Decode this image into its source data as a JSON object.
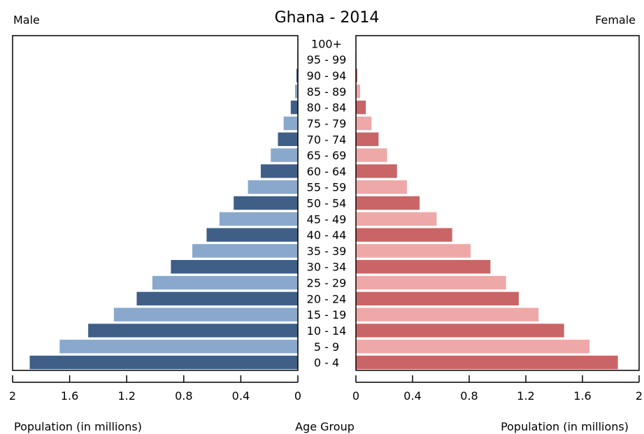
{
  "chart_data": {
    "type": "bar",
    "title": "Ghana - 2014",
    "left_label": "Male",
    "right_label": "Female",
    "xlabel_left": "Population (in millions)",
    "xlabel_center": "Age Group",
    "xlabel_right": "Population (in millions)",
    "xlim": [
      0,
      2
    ],
    "xticks_left": [
      "2",
      "1.6",
      "1.2",
      "0.8",
      "0.4",
      "0"
    ],
    "xticks_right": [
      "0",
      "0.4",
      "0.8",
      "1.2",
      "1.6",
      "2"
    ],
    "categories": [
      "0 - 4",
      "5 - 9",
      "10 - 14",
      "15 - 19",
      "20 - 24",
      "25 - 29",
      "30 - 34",
      "35 - 39",
      "40 - 44",
      "45 - 49",
      "50 - 54",
      "55 - 59",
      "60 - 64",
      "65 - 69",
      "70 - 74",
      "75 - 79",
      "80 - 84",
      "85 - 89",
      "90 - 94",
      "95 - 99",
      "100+"
    ],
    "series": [
      {
        "name": "Male",
        "values": [
          1.88,
          1.67,
          1.47,
          1.29,
          1.13,
          1.02,
          0.89,
          0.74,
          0.64,
          0.55,
          0.45,
          0.35,
          0.26,
          0.19,
          0.14,
          0.1,
          0.05,
          0.02,
          0.01,
          0.005,
          0.003
        ]
      },
      {
        "name": "Female",
        "values": [
          1.85,
          1.65,
          1.47,
          1.29,
          1.15,
          1.06,
          0.95,
          0.81,
          0.68,
          0.57,
          0.45,
          0.36,
          0.29,
          0.22,
          0.16,
          0.11,
          0.07,
          0.03,
          0.01,
          0.005,
          0.003
        ]
      }
    ],
    "colors": {
      "male_dark": "#3f5f87",
      "male_light": "#89a8cb",
      "female_dark": "#c96566",
      "female_light": "#eea8a8",
      "frame": "#000000"
    }
  }
}
